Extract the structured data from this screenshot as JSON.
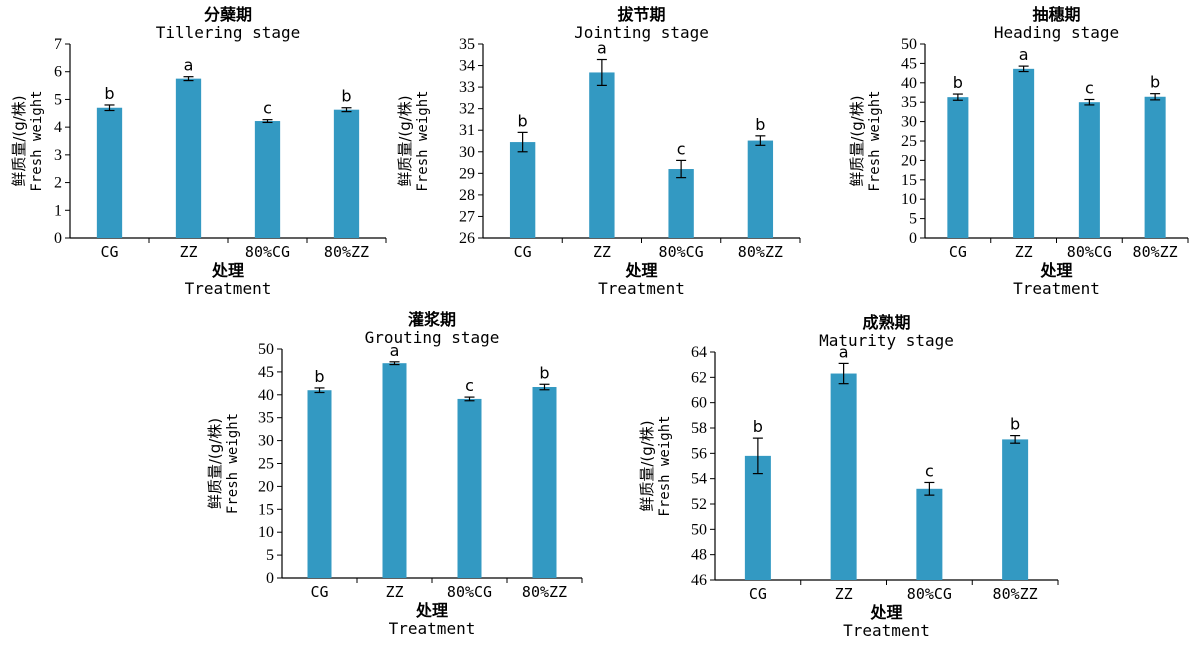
{
  "chart_data": [
    {
      "type": "bar",
      "title": "分蘖期",
      "subtitle": "Tillering stage",
      "ylabel_cn": "鲜质量/(g/株)",
      "ylabel_en": "Fresh weight",
      "xlabel_cn": "处理",
      "xlabel_en": "Treatment",
      "categories": [
        "CG",
        "ZZ",
        "80%CG",
        "80%ZZ"
      ],
      "values": [
        4.7,
        5.75,
        4.22,
        4.63
      ],
      "errors": [
        0.1,
        0.07,
        0.05,
        0.07
      ],
      "letters": [
        "b",
        "a",
        "c",
        "b"
      ],
      "ylim": [
        0,
        7
      ],
      "yticks": [
        0,
        1,
        2,
        3,
        4,
        5,
        6,
        7
      ],
      "bar_color": "#3399c2"
    },
    {
      "type": "bar",
      "title": "拔节期",
      "subtitle": "Jointing stage",
      "ylabel_cn": "鲜质量/(g/株)",
      "ylabel_en": "Fresh weight",
      "xlabel_cn": "处理",
      "xlabel_en": "Treatment",
      "categories": [
        "CG",
        "ZZ",
        "80%CG",
        "80%ZZ"
      ],
      "values": [
        30.45,
        33.68,
        29.2,
        30.52
      ],
      "errors": [
        0.45,
        0.6,
        0.4,
        0.22
      ],
      "letters": [
        "b",
        "a",
        "c",
        "b"
      ],
      "ylim": [
        26,
        35
      ],
      "yticks": [
        26,
        27,
        28,
        29,
        30,
        31,
        32,
        33,
        34,
        35
      ],
      "bar_color": "#3399c2"
    },
    {
      "type": "bar",
      "title": "抽穗期",
      "subtitle": "Heading stage",
      "ylabel_cn": "鲜质量/(g/株)",
      "ylabel_en": "Fresh weight",
      "xlabel_cn": "处理",
      "xlabel_en": "Treatment",
      "categories": [
        "CG",
        "ZZ",
        "80%CG",
        "80%ZZ"
      ],
      "values": [
        36.3,
        43.6,
        35.0,
        36.4
      ],
      "errors": [
        0.8,
        0.7,
        0.7,
        0.8
      ],
      "letters": [
        "b",
        "a",
        "c",
        "b"
      ],
      "ylim": [
        0,
        50
      ],
      "yticks": [
        0,
        5,
        10,
        15,
        20,
        25,
        30,
        35,
        40,
        45,
        50
      ],
      "bar_color": "#3399c2"
    },
    {
      "type": "bar",
      "title": "灌浆期",
      "subtitle": "Grouting stage",
      "ylabel_cn": "鲜质量/(g/株)",
      "ylabel_en": "Fresh weight",
      "xlabel_cn": "处理",
      "xlabel_en": "Treatment",
      "categories": [
        "CG",
        "ZZ",
        "80%CG",
        "80%ZZ"
      ],
      "values": [
        41.0,
        46.9,
        39.1,
        41.7
      ],
      "errors": [
        0.5,
        0.3,
        0.4,
        0.6
      ],
      "letters": [
        "b",
        "a",
        "c",
        "b"
      ],
      "ylim": [
        0,
        50
      ],
      "yticks": [
        0,
        5,
        10,
        15,
        20,
        25,
        30,
        35,
        40,
        45,
        50
      ],
      "bar_color": "#3399c2"
    },
    {
      "type": "bar",
      "title": "成熟期",
      "subtitle": "Maturity stage",
      "ylabel_cn": "鲜质量/(g/株)",
      "ylabel_en": "Fresh weight",
      "xlabel_cn": "处理",
      "xlabel_en": "Treatment",
      "categories": [
        "CG",
        "ZZ",
        "80%CG",
        "80%ZZ"
      ],
      "values": [
        55.8,
        62.3,
        53.2,
        57.1
      ],
      "errors": [
        1.4,
        0.8,
        0.5,
        0.3
      ],
      "letters": [
        "b",
        "a",
        "c",
        "b"
      ],
      "ylim": [
        46,
        64
      ],
      "yticks": [
        46,
        48,
        50,
        52,
        54,
        56,
        58,
        60,
        62,
        64
      ],
      "bar_color": "#3399c2"
    }
  ]
}
